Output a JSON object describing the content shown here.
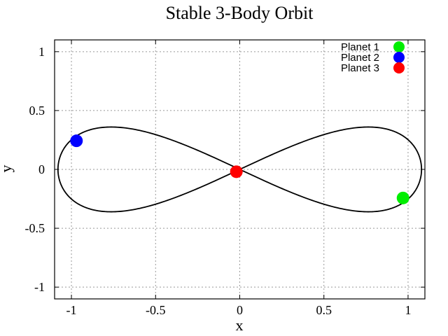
{
  "chart_data": {
    "type": "line",
    "title": "Stable 3-Body Orbit",
    "xlabel": "x",
    "ylabel": "y",
    "xlim": [
      -1.1,
      1.1
    ],
    "ylim": [
      -1.1,
      1.1
    ],
    "xticks": [
      -1,
      -0.5,
      0,
      0.5,
      1
    ],
    "yticks": [
      -1,
      -0.5,
      0,
      0.5,
      1
    ],
    "xtick_labels": [
      "-1",
      "-0.5",
      "0",
      "0.5",
      "1"
    ],
    "ytick_labels": [
      "-1",
      "-0.5",
      "0",
      "0.5",
      "1"
    ],
    "grid": true,
    "legend_position": "top-right",
    "orbit": {
      "shape": "figure-eight",
      "x_extent": [
        -1.08,
        1.08
      ],
      "y_extent": [
        -0.36,
        0.36
      ],
      "color": "#000000"
    },
    "bodies": [
      {
        "name": "Planet 1",
        "color": "#00ee00",
        "x": 0.97,
        "y": -0.243
      },
      {
        "name": "Planet 2",
        "color": "#0000ff",
        "x": -0.97,
        "y": 0.243
      },
      {
        "name": "Planet 3",
        "color": "#ff0000",
        "x": -0.02,
        "y": -0.02
      }
    ]
  }
}
